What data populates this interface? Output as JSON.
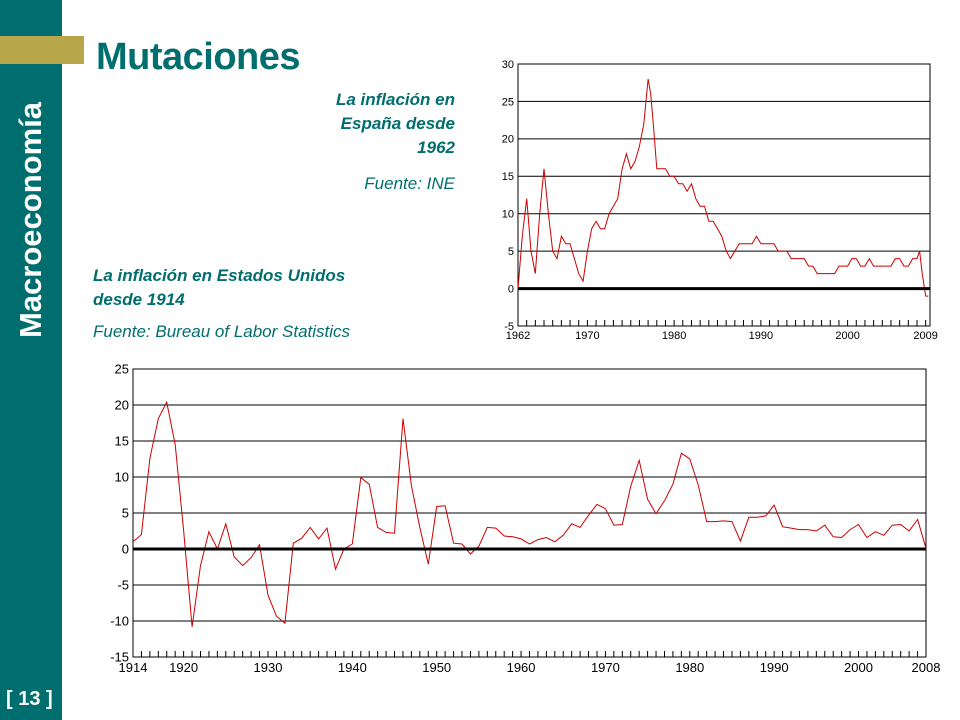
{
  "sidebar": {
    "title": "Macroeconomía",
    "slide_number": "[ 13 ]"
  },
  "slide": {
    "title": "Mutaciones"
  },
  "spain": {
    "caption_lines": [
      "La inflación en",
      "España desde",
      "1962"
    ],
    "source": "Fuente: INE"
  },
  "us": {
    "caption_lines": [
      "La inflación en Estados Unidos",
      "desde 1914"
    ],
    "source": "Fuente: Bureau of Labor Statistics"
  },
  "colors": {
    "teal": "#006e6e",
    "gold": "#b8a64a",
    "series": "#cc0000"
  },
  "chart_data": [
    {
      "type": "line",
      "series": [
        {
          "name": "",
          "x": [
            1962,
            1962.5,
            1963,
            1963.5,
            1964,
            1964.5,
            1965,
            1965.5,
            1966,
            1966.5,
            1967,
            1967.5,
            1968,
            1968.5,
            1969,
            1969.5,
            1970,
            1970.5,
            1971,
            1971.5,
            1972,
            1972.5,
            1973,
            1973.5,
            1974,
            1974.5,
            1975,
            1975.5,
            1976,
            1976.5,
            1977,
            1977.3,
            1977.6,
            1978,
            1978.5,
            1979,
            1979.5,
            1980,
            1980.5,
            1981,
            1981.5,
            1982,
            1982.5,
            1983,
            1983.5,
            1984,
            1984.5,
            1985,
            1985.5,
            1986,
            1986.5,
            1987,
            1987.5,
            1988,
            1988.5,
            1989,
            1989.5,
            1990,
            1990.5,
            1991,
            1991.5,
            1992,
            1992.5,
            1993,
            1993.5,
            1994,
            1994.5,
            1995,
            1995.5,
            1996,
            1996.5,
            1997,
            1997.5,
            1998,
            1998.5,
            1999,
            1999.5,
            2000,
            2000.5,
            2001,
            2001.5,
            2002,
            2002.5,
            2003,
            2003.5,
            2004,
            2004.5,
            2005,
            2005.5,
            2006,
            2006.5,
            2007,
            2007.5,
            2008,
            2008.3,
            2008.6,
            2009,
            2009.3
          ],
          "y": [
            0,
            7,
            12,
            5,
            2,
            10,
            16,
            10,
            5,
            4,
            7,
            6,
            6,
            4,
            2,
            1,
            5,
            8,
            9,
            8,
            8,
            10,
            11,
            12,
            16,
            18,
            16,
            17,
            19,
            22,
            28,
            26,
            22,
            16,
            16,
            16,
            15,
            15,
            14,
            14,
            13,
            14,
            12,
            11,
            11,
            9,
            9,
            8,
            7,
            5,
            4,
            5,
            6,
            6,
            6,
            6,
            7,
            6,
            6,
            6,
            6,
            5,
            5,
            5,
            4,
            4,
            4,
            4,
            3,
            3,
            2,
            2,
            2,
            2,
            2,
            3,
            3,
            3,
            4,
            4,
            3,
            3,
            4,
            3,
            3,
            3,
            3,
            3,
            4,
            4,
            3,
            3,
            4,
            4,
            5,
            2,
            -1,
            -1
          ]
        }
      ],
      "categories": [
        "1962",
        "1970",
        "1980",
        "1990",
        "2000",
        "2009"
      ],
      "ylim": [
        -5,
        30
      ],
      "yticks": [
        "30",
        "25",
        "20",
        "15",
        "10",
        "5",
        "0",
        "-5"
      ]
    },
    {
      "type": "line",
      "series": [
        {
          "name": "",
          "x": [
            1914,
            1915,
            1916,
            1917,
            1918,
            1919,
            1920,
            1921,
            1922,
            1923,
            1924,
            1925,
            1926,
            1927,
            1928,
            1929,
            1930,
            1931,
            1932,
            1933,
            1934,
            1935,
            1936,
            1937,
            1938,
            1939,
            1940,
            1941,
            1942,
            1943,
            1944,
            1945,
            1946,
            1947,
            1948,
            1949,
            1950,
            1951,
            1952,
            1953,
            1954,
            1955,
            1956,
            1957,
            1958,
            1959,
            1960,
            1961,
            1962,
            1963,
            1964,
            1965,
            1966,
            1967,
            1968,
            1969,
            1970,
            1971,
            1972,
            1973,
            1974,
            1975,
            1976,
            1977,
            1978,
            1979,
            1980,
            1981,
            1982,
            1983,
            1984,
            1985,
            1986,
            1987,
            1988,
            1989,
            1990,
            1991,
            1992,
            1993,
            1994,
            1995,
            1996,
            1997,
            1998,
            1999,
            2000,
            2001,
            2002,
            2003,
            2004,
            2005,
            2006,
            2007,
            2008
          ],
          "y": [
            1.0,
            2.0,
            12.6,
            18.1,
            20.4,
            14.5,
            2.6,
            -10.8,
            -2.3,
            2.4,
            0.0,
            3.5,
            -1.1,
            -2.3,
            -1.2,
            0.6,
            -6.4,
            -9.3,
            -10.3,
            0.8,
            1.5,
            3.0,
            1.4,
            2.9,
            -2.8,
            0.0,
            0.7,
            9.9,
            9.0,
            3.0,
            2.3,
            2.2,
            18.1,
            8.8,
            3.0,
            -2.1,
            5.9,
            6.0,
            0.8,
            0.7,
            -0.7,
            0.4,
            3.0,
            2.9,
            1.8,
            1.7,
            1.4,
            0.7,
            1.3,
            1.6,
            1.0,
            1.9,
            3.5,
            3.0,
            4.7,
            6.2,
            5.6,
            3.3,
            3.4,
            8.7,
            12.3,
            6.9,
            4.9,
            6.7,
            9.0,
            13.3,
            12.5,
            8.9,
            3.8,
            3.8,
            3.9,
            3.8,
            1.1,
            4.4,
            4.4,
            4.6,
            6.1,
            3.1,
            2.9,
            2.7,
            2.7,
            2.5,
            3.3,
            1.7,
            1.6,
            2.7,
            3.4,
            1.6,
            2.4,
            1.9,
            3.3,
            3.4,
            2.5,
            4.1,
            0.1
          ]
        }
      ],
      "categories": [
        "1914",
        "1920",
        "1930",
        "1940",
        "1950",
        "1960",
        "1970",
        "1980",
        "1990",
        "2000",
        "2008"
      ],
      "ylim": [
        -15,
        25
      ],
      "yticks": [
        "25",
        "20",
        "15",
        "10",
        "5",
        "0",
        "-5",
        "-10",
        "-15"
      ]
    }
  ]
}
